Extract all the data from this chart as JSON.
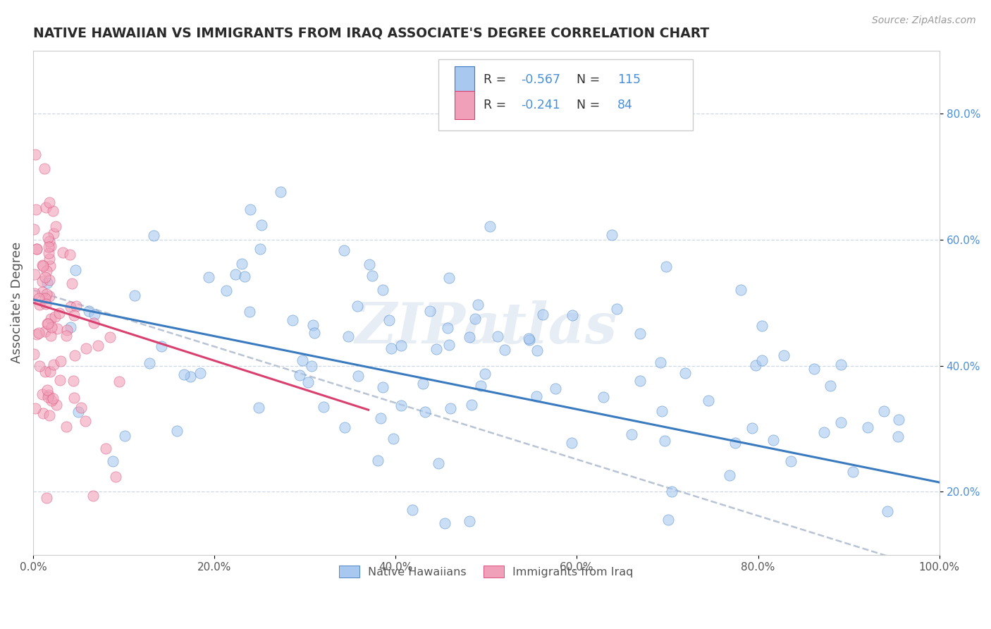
{
  "title": "NATIVE HAWAIIAN VS IMMIGRANTS FROM IRAQ ASSOCIATE'S DEGREE CORRELATION CHART",
  "source_text": "Source: ZipAtlas.com",
  "ylabel": "Associate's Degree",
  "r1": -0.567,
  "n1": 115,
  "r2": -0.241,
  "n2": 84,
  "color1": "#a8c8f0",
  "color2": "#f0a0b8",
  "trendline1_color": "#3a7abf",
  "trendline2_color": "#d94070",
  "trendline_dash_color": "#b8c4d4",
  "legend_label1": "Native Hawaiians",
  "legend_label2": "Immigrants from Iraq",
  "watermark": "ZIPatlas",
  "background_color": "#ffffff",
  "grid_color": "#c8d4e4",
  "x_tick_labels": [
    "0.0%",
    "20.0%",
    "40.0%",
    "60.0%",
    "80.0%",
    "100.0%"
  ],
  "y_tick_labels": [
    "20.0%",
    "40.0%",
    "60.0%",
    "80.0%"
  ],
  "title_color": "#2a2a2a",
  "tick_color": "#4a90d9",
  "axis_label_color": "#555555",
  "xlim": [
    0.0,
    1.0
  ],
  "ylim": [
    0.1,
    0.9
  ]
}
